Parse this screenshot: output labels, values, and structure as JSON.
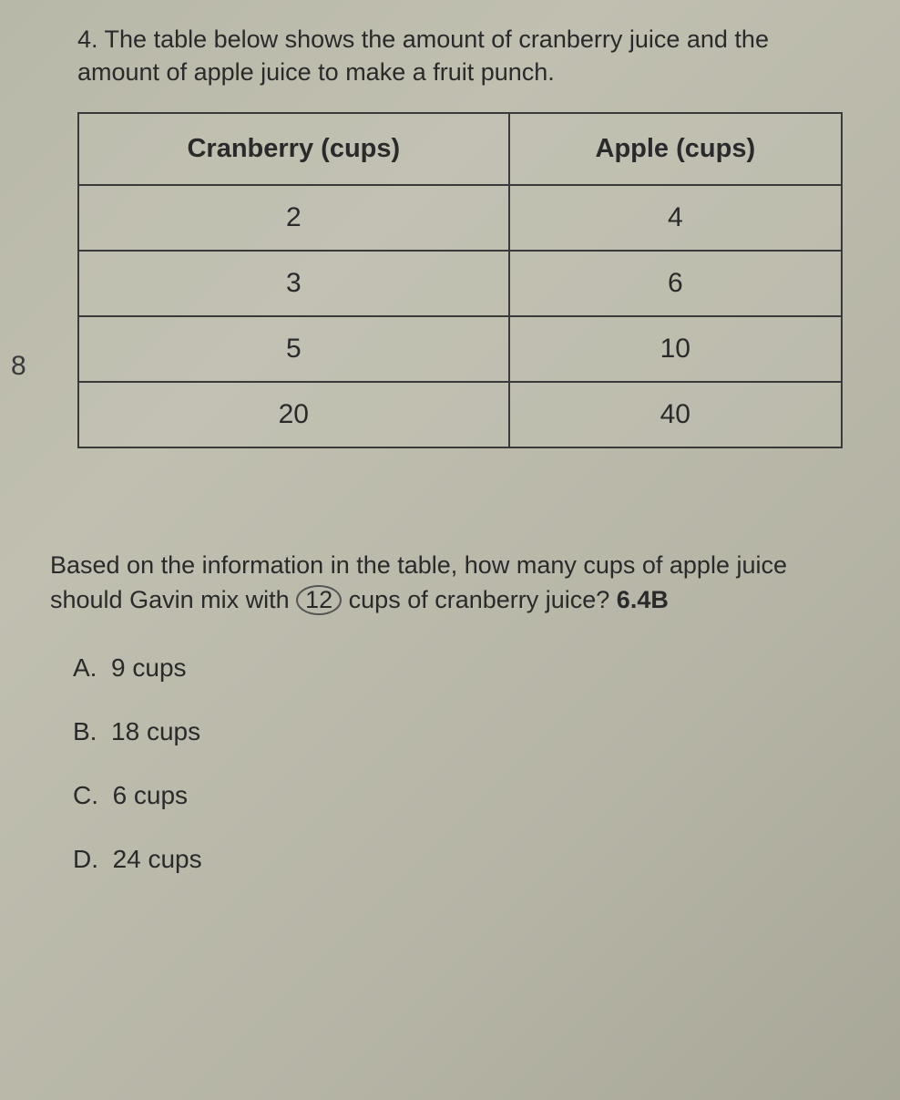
{
  "question": {
    "number": "4.",
    "text_part1": "The table below shows the amount of cranberry juice and the amount of apple juice to make a fruit punch."
  },
  "page_number": "8",
  "table": {
    "headers": {
      "col1": "Cranberry (cups)",
      "col2": "Apple (cups)"
    },
    "rows": [
      {
        "c1": "2",
        "c2": "4"
      },
      {
        "c1": "3",
        "c2": "6"
      },
      {
        "c1": "5",
        "c2": "10"
      },
      {
        "c1": "20",
        "c2": "40"
      }
    ],
    "border_color": "#3a3a3a",
    "header_fontsize": 29,
    "cell_fontsize": 30
  },
  "prompt": {
    "part1": "Based on the information in the table, how many cups of apple juice should Gavin mix with ",
    "circled_value": "12",
    "part2": " cups of cranberry juice? ",
    "standard": "6.4B"
  },
  "choices": {
    "a": {
      "letter": "A.",
      "text": "9 cups"
    },
    "b": {
      "letter": "B.",
      "text": "18 cups"
    },
    "c": {
      "letter": "C.",
      "text": "6 cups"
    },
    "d": {
      "letter": "D.",
      "text": "24 cups"
    }
  },
  "colors": {
    "text": "#2a2a2a",
    "background": "#b8b8a8"
  }
}
